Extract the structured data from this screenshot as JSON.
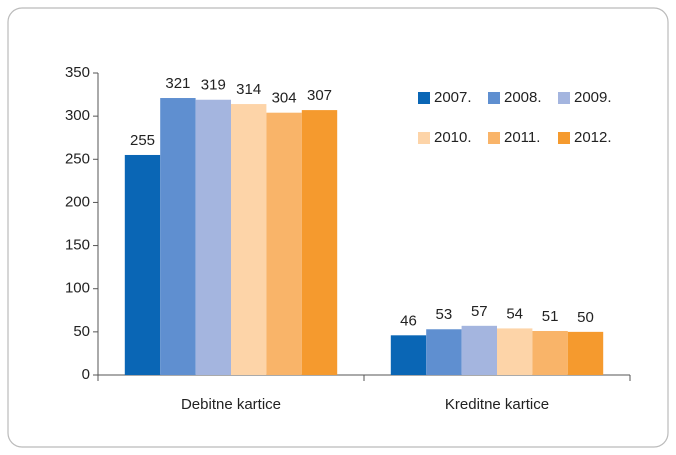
{
  "chart_data": {
    "type": "bar",
    "categories": [
      "Debitne kartice",
      "Kreditne kartice"
    ],
    "series": [
      {
        "name": "2007.",
        "color": "#0a66b5",
        "values": [
          255,
          46
        ]
      },
      {
        "name": "2008.",
        "color": "#5f8fd0",
        "values": [
          321,
          53
        ]
      },
      {
        "name": "2009.",
        "color": "#a4b5df",
        "values": [
          319,
          57
        ]
      },
      {
        "name": "2010.",
        "color": "#fdd4a8",
        "values": [
          314,
          54
        ]
      },
      {
        "name": "2011.",
        "color": "#f9b469",
        "values": [
          304,
          51
        ]
      },
      {
        "name": "2012.",
        "color": "#f59a2e",
        "values": [
          307,
          50
        ]
      }
    ],
    "ylim": [
      0,
      350
    ],
    "yticks": [
      0,
      50,
      100,
      150,
      200,
      250,
      300,
      350
    ],
    "grid": false
  }
}
